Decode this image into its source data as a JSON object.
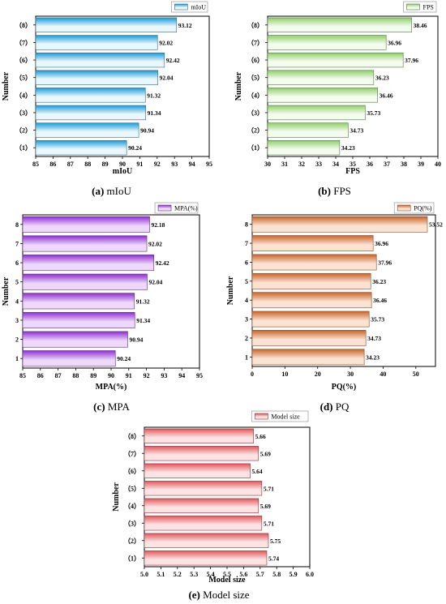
{
  "figure": {
    "captions": [
      {
        "letter": "(a)",
        "text": "mIoU"
      },
      {
        "letter": "(b)",
        "text": "FPS"
      },
      {
        "letter": "(c)",
        "text": "MPA"
      },
      {
        "letter": "(d)",
        "text": "PQ"
      },
      {
        "letter": "(e)",
        "text": "Model size"
      }
    ]
  },
  "chart_data": [
    {
      "id": "a",
      "type": "bar",
      "orientation": "horizontal",
      "categories": [
        "（1）",
        "（2）",
        "（3）",
        "（4）",
        "（5）",
        "（6）",
        "（7）",
        "（8）"
      ],
      "values": [
        90.24,
        90.94,
        91.34,
        91.32,
        92.04,
        92.42,
        92.02,
        93.12
      ],
      "data_labels": [
        "90.24",
        "90.94",
        "91.34",
        "91.32",
        "92.04",
        "92.42",
        "92.02",
        "93.12"
      ],
      "legend": "mIoU",
      "legend_position": "top-right",
      "xlabel": "mIoU",
      "ylabel": "Number",
      "xlim": [
        85,
        95
      ],
      "xticks": [
        "85",
        "86",
        "87",
        "88",
        "89",
        "90",
        "91",
        "92",
        "93",
        "94",
        "95"
      ],
      "colors": {
        "dark": "#1a9ad6",
        "light": "#eaf7fd",
        "stroke": "#2b6c8e"
      },
      "grid": false
    },
    {
      "id": "b",
      "type": "bar",
      "orientation": "horizontal",
      "categories": [
        "（1）",
        "（2）",
        "（3）",
        "（4）",
        "（5）",
        "（6）",
        "（7）",
        "（8）"
      ],
      "values": [
        34.23,
        34.73,
        35.73,
        36.46,
        36.23,
        37.96,
        36.96,
        38.46
      ],
      "data_labels": [
        "34.23",
        "34.73",
        "35.73",
        "36.46",
        "36.23",
        "37.96",
        "36.96",
        "38.46"
      ],
      "legend": "FPS",
      "legend_position": "top-right",
      "xlabel": "FPS",
      "ylabel": "Number",
      "xlim": [
        30,
        40
      ],
      "xticks": [
        "30",
        "31",
        "32",
        "33",
        "34",
        "35",
        "36",
        "37",
        "38",
        "39",
        "40"
      ],
      "colors": {
        "dark": "#8fcf6a",
        "light": "#f4fbef",
        "stroke": "#4f7a3a"
      },
      "grid": false
    },
    {
      "id": "c",
      "type": "bar",
      "orientation": "horizontal",
      "categories": [
        "1",
        "2",
        "3",
        "4",
        "5",
        "6",
        "7",
        "8"
      ],
      "values": [
        90.24,
        90.94,
        91.34,
        91.32,
        92.04,
        92.42,
        92.02,
        92.18
      ],
      "data_labels": [
        "90.24",
        "90.94",
        "91.34",
        "91.32",
        "92.04",
        "92.42",
        "92.02",
        "92.18"
      ],
      "legend": "MPA(%)",
      "legend_position": "top-right",
      "xlabel": "MPA(%)",
      "ylabel": "Number",
      "xlim": [
        85,
        95
      ],
      "xticks": [
        "85",
        "86",
        "87",
        "88",
        "89",
        "90",
        "91",
        "92",
        "93",
        "94",
        "95"
      ],
      "colors": {
        "dark": "#8e2fd0",
        "light": "#efd9fb",
        "stroke": "#5c2a80"
      },
      "grid": false
    },
    {
      "id": "d",
      "type": "bar",
      "orientation": "horizontal",
      "categories": [
        "1",
        "2",
        "3",
        "4",
        "5",
        "6",
        "7",
        "8"
      ],
      "values": [
        34.23,
        34.73,
        35.73,
        36.46,
        36.23,
        37.96,
        36.96,
        53.52
      ],
      "data_labels": [
        "34.23",
        "34.73",
        "35.73",
        "36.46",
        "36.23",
        "37.96",
        "36.96",
        "53.52"
      ],
      "legend": "PQ(%)",
      "legend_position": "top-right",
      "xlabel": "PQ(%)",
      "ylabel": "Number",
      "xlim": [
        0,
        56
      ],
      "xticks": [
        "0",
        "10",
        "20",
        "30",
        "40",
        "50"
      ],
      "xtick_values": [
        0,
        10,
        20,
        30,
        40,
        50
      ],
      "colors": {
        "dark": "#c8642a",
        "light": "#fbe3d3",
        "stroke": "#8a4a24"
      },
      "grid": false
    },
    {
      "id": "e",
      "type": "bar",
      "orientation": "horizontal",
      "categories": [
        "（1）",
        "（2）",
        "（3）",
        "（4）",
        "（5）",
        "（6）",
        "（7）",
        "（8）"
      ],
      "values": [
        5.74,
        5.75,
        5.71,
        5.69,
        5.71,
        5.64,
        5.69,
        5.66
      ],
      "data_labels": [
        "5.74",
        "5.75",
        "5.71",
        "5.69",
        "5.71",
        "5.64",
        "5.69",
        "5.66"
      ],
      "legend": "Model size",
      "legend_position": "top-right",
      "xlabel": "Model size",
      "ylabel": "Number",
      "xlim": [
        5.0,
        6.0
      ],
      "xticks": [
        "5.0",
        "5.1",
        "5.2",
        "5.3",
        "5.4",
        "5.5",
        "5.6",
        "5.7",
        "5.8",
        "5.9",
        "6.0"
      ],
      "colors": {
        "dark": "#e0585d",
        "light": "#fde3e3",
        "stroke": "#8a3034"
      },
      "grid": false
    }
  ]
}
